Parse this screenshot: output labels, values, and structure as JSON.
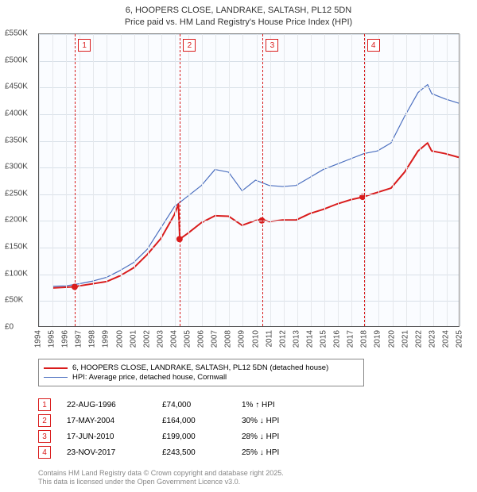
{
  "title_line1": "6, HOOPERS CLOSE, LANDRAKE, SALTASH, PL12 5DN",
  "title_line2": "Price paid vs. HM Land Registry's House Price Index (HPI)",
  "chart": {
    "type": "line",
    "background_color": "#fafcff",
    "grid_color": "#e0e6ec",
    "x_range": [
      1994,
      2025
    ],
    "y_range": [
      0,
      550
    ],
    "y_tick_step": 50,
    "y_tick_labels": [
      "£0",
      "£50K",
      "£100K",
      "£150K",
      "£200K",
      "£250K",
      "£300K",
      "£350K",
      "£400K",
      "£450K",
      "£500K",
      "£550K"
    ],
    "x_tick_step": 1,
    "x_tick_labels": [
      "1994",
      "1995",
      "1996",
      "1997",
      "1998",
      "1999",
      "2000",
      "2001",
      "2002",
      "2003",
      "2004",
      "2005",
      "2006",
      "2007",
      "2008",
      "2009",
      "2010",
      "2011",
      "2012",
      "2013",
      "2014",
      "2015",
      "2016",
      "2017",
      "2018",
      "2019",
      "2020",
      "2021",
      "2022",
      "2023",
      "2024",
      "2025"
    ],
    "series": [
      {
        "name": "6, HOOPERS CLOSE, LANDRAKE, SALTASH, PL12 5DN (detached house)",
        "color": "#d91c1c",
        "line_width": 2,
        "points": [
          [
            1995.0,
            72
          ],
          [
            1996.5,
            74
          ],
          [
            1997.0,
            76
          ],
          [
            1998.0,
            80
          ],
          [
            1999.0,
            84
          ],
          [
            2000.0,
            95
          ],
          [
            2001.0,
            110
          ],
          [
            2002.0,
            135
          ],
          [
            2003.0,
            165
          ],
          [
            2004.0,
            210
          ],
          [
            2004.3,
            230
          ],
          [
            2004.4,
            164
          ],
          [
            2005.0,
            175
          ],
          [
            2006.0,
            195
          ],
          [
            2007.0,
            208
          ],
          [
            2008.0,
            207
          ],
          [
            2009.0,
            190
          ],
          [
            2010.0,
            199
          ],
          [
            2010.5,
            201
          ],
          [
            2011.0,
            197
          ],
          [
            2012.0,
            200
          ],
          [
            2013.0,
            200
          ],
          [
            2014.0,
            212
          ],
          [
            2015.0,
            220
          ],
          [
            2016.0,
            230
          ],
          [
            2017.0,
            238
          ],
          [
            2017.9,
            243
          ],
          [
            2018.5,
            248
          ],
          [
            2019.0,
            252
          ],
          [
            2020.0,
            260
          ],
          [
            2021.0,
            290
          ],
          [
            2022.0,
            330
          ],
          [
            2022.7,
            345
          ],
          [
            2023.0,
            330
          ],
          [
            2024.0,
            325
          ],
          [
            2025.0,
            318
          ]
        ]
      },
      {
        "name": "HPI: Average price, detached house, Cornwall",
        "color": "#4b6fbf",
        "line_width": 1.2,
        "points": [
          [
            1995.0,
            75
          ],
          [
            1996.0,
            76
          ],
          [
            1997.0,
            80
          ],
          [
            1998.0,
            85
          ],
          [
            1999.0,
            92
          ],
          [
            2000.0,
            105
          ],
          [
            2001.0,
            120
          ],
          [
            2002.0,
            145
          ],
          [
            2003.0,
            185
          ],
          [
            2004.0,
            225
          ],
          [
            2005.0,
            245
          ],
          [
            2006.0,
            265
          ],
          [
            2007.0,
            295
          ],
          [
            2008.0,
            290
          ],
          [
            2009.0,
            255
          ],
          [
            2010.0,
            275
          ],
          [
            2011.0,
            265
          ],
          [
            2012.0,
            263
          ],
          [
            2013.0,
            265
          ],
          [
            2014.0,
            280
          ],
          [
            2015.0,
            295
          ],
          [
            2016.0,
            305
          ],
          [
            2017.0,
            315
          ],
          [
            2018.0,
            325
          ],
          [
            2019.0,
            330
          ],
          [
            2020.0,
            345
          ],
          [
            2021.0,
            395
          ],
          [
            2022.0,
            440
          ],
          [
            2022.7,
            455
          ],
          [
            2023.0,
            438
          ],
          [
            2024.0,
            428
          ],
          [
            2025.0,
            420
          ]
        ]
      }
    ],
    "sale_dots": [
      [
        1996.64,
        74
      ],
      [
        2004.38,
        164
      ],
      [
        2010.46,
        199
      ],
      [
        2017.9,
        243.5
      ]
    ],
    "markers": [
      {
        "label": "1",
        "x": 1996.64,
        "color": "#d91c1c"
      },
      {
        "label": "2",
        "x": 2004.38,
        "color": "#d91c1c"
      },
      {
        "label": "3",
        "x": 2010.46,
        "color": "#d91c1c"
      },
      {
        "label": "4",
        "x": 2017.9,
        "color": "#d91c1c"
      }
    ]
  },
  "legend": [
    {
      "color": "#d91c1c",
      "width": 2,
      "text": "6, HOOPERS CLOSE, LANDRAKE, SALTASH, PL12 5DN (detached house)"
    },
    {
      "color": "#4b6fbf",
      "width": 1.2,
      "text": "HPI: Average price, detached house, Cornwall"
    }
  ],
  "events": [
    {
      "n": "1",
      "date": "22-AUG-1996",
      "price": "£74,000",
      "diff": "1% ↑ HPI"
    },
    {
      "n": "2",
      "date": "17-MAY-2004",
      "price": "£164,000",
      "diff": "30% ↓ HPI"
    },
    {
      "n": "3",
      "date": "17-JUN-2010",
      "price": "£199,000",
      "diff": "28% ↓ HPI"
    },
    {
      "n": "4",
      "date": "23-NOV-2017",
      "price": "£243,500",
      "diff": "25% ↓ HPI"
    }
  ],
  "footer_line1": "Contains HM Land Registry data © Crown copyright and database right 2025.",
  "footer_line2": "This data is licensed under the Open Government Licence v3.0."
}
